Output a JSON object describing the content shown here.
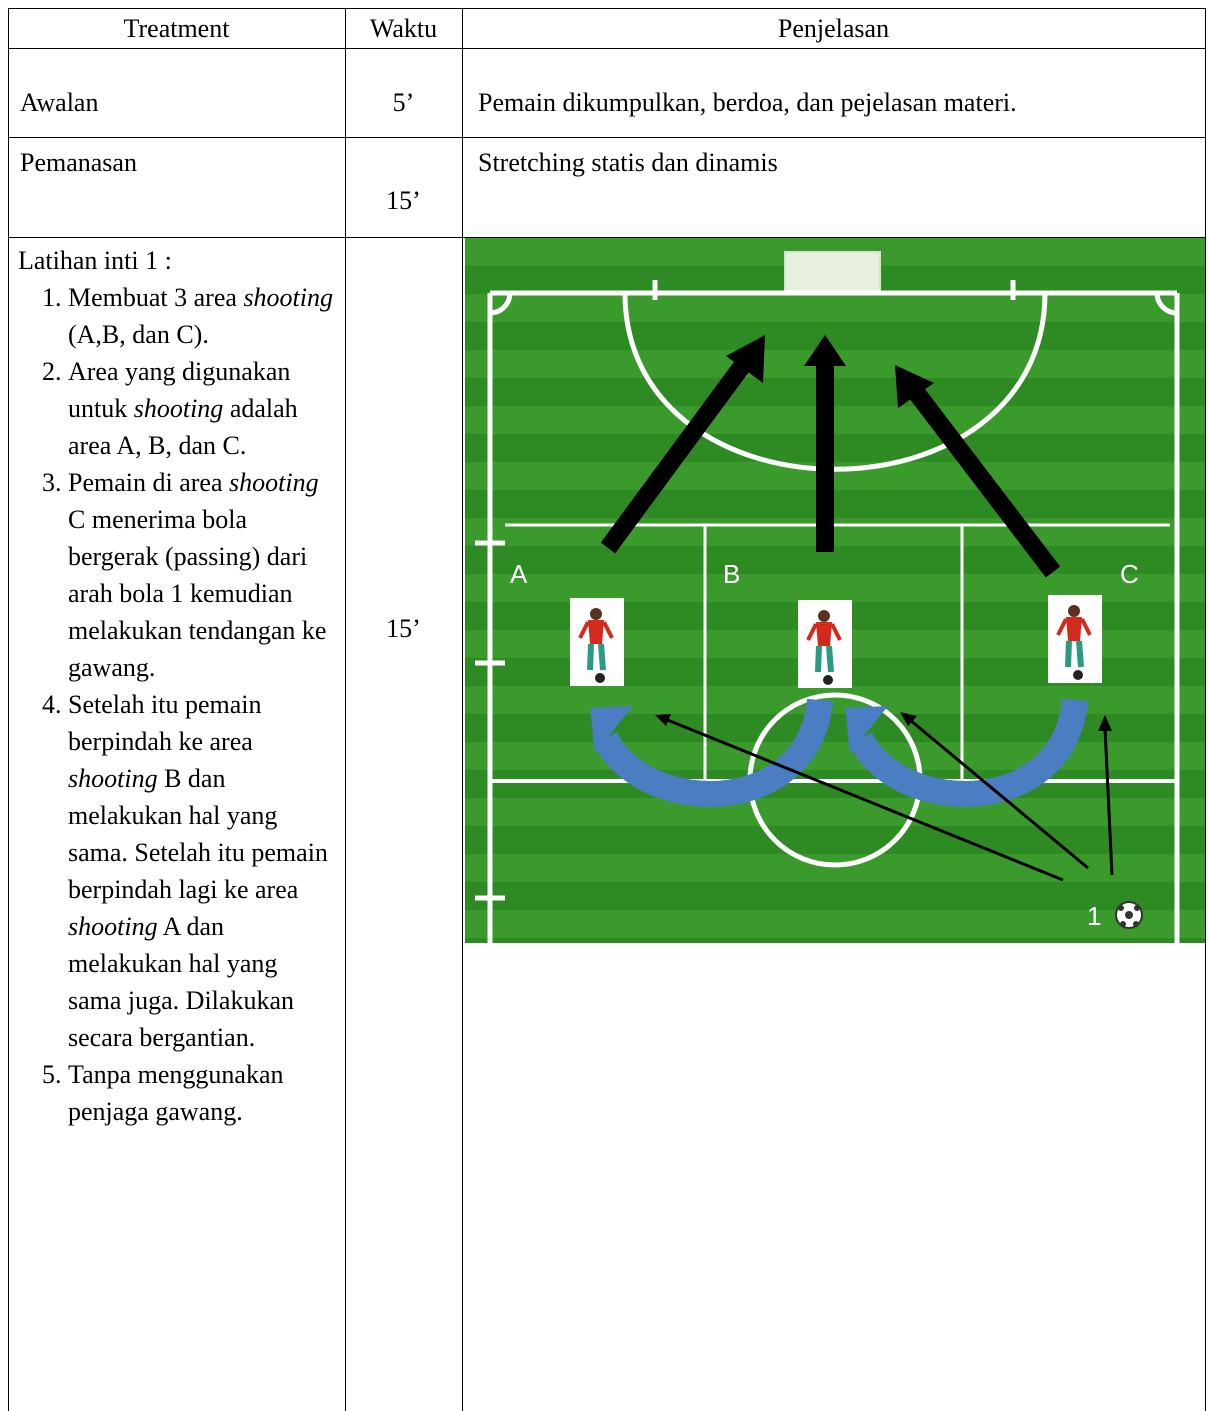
{
  "table": {
    "header": [
      "Treatment",
      "Waktu",
      "Penjelasan"
    ],
    "rows": [
      {
        "treatment": "Awalan",
        "waktu": "5’",
        "penjelasan": "Pemain dikumpulkan, berdoa, dan pejelasan materi."
      },
      {
        "treatment": "Pemanasan",
        "waktu": "15’",
        "penjelasan": "Stretching statis dan dinamis"
      },
      {
        "treatment": {
          "title": "Latihan inti 1 :",
          "items": [
            [
              "Membuat 3 area ",
              "shooting",
              " (A,B, dan C)."
            ],
            [
              "Area yang digunakan untuk ",
              "shooting",
              " adalah area A, B, dan C."
            ],
            [
              "Pemain di area ",
              "shooting",
              " C menerima bola bergerak (passing) dari arah bola 1 kemudian melakukan tendangan ke gawang."
            ],
            [
              "Setelah itu pemain berpindah ke area ",
              "shooting",
              " B dan melakukan hal yang sama. Setelah itu pemain berpindah lagi ke area ",
              "shooting",
              " A dan melakukan hal yang sama juga. Dilakukan secara bergantian."
            ],
            [
              "Tanpa menggunakan penjaga gawang."
            ]
          ]
        },
        "waktu": "15’",
        "diagram": {
          "area_labels": [
            "A",
            "B",
            "C"
          ],
          "ball_label": "1"
        }
      }
    ]
  }
}
